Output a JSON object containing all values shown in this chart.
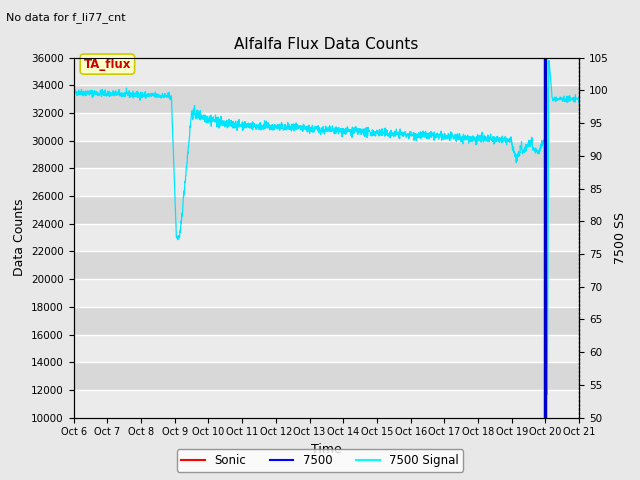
{
  "title": "Alfalfa Flux Data Counts",
  "top_left_text": "No data for f_li77_cnt",
  "xlabel": "Time",
  "ylabel_left": "Data Counts",
  "ylabel_right": "7500 SS",
  "ylim_left": [
    10000,
    36000
  ],
  "ylim_right": [
    50,
    105
  ],
  "yticks_left": [
    10000,
    12000,
    14000,
    16000,
    18000,
    20000,
    22000,
    24000,
    26000,
    28000,
    30000,
    32000,
    34000,
    36000
  ],
  "yticks_right": [
    50,
    55,
    60,
    65,
    70,
    75,
    80,
    85,
    90,
    95,
    100,
    105
  ],
  "xtick_labels": [
    "Oct 6",
    "Oct 7",
    "Oct 8",
    "Oct 9",
    "Oct 10",
    "Oct 11",
    "Oct 12",
    "Oct 13",
    "Oct 14",
    "Oct 15",
    "Oct 16",
    "Oct 17",
    "Oct 18",
    "Oct 19",
    "Oct 20",
    "Oct 21"
  ],
  "bg_color": "#e8e8e8",
  "plot_bg_color": "#e0e0e0",
  "grid_color": "#f5f5f5",
  "annotation_box": {
    "text": "TA_flux",
    "facecolor": "#ffffcc",
    "edgecolor": "#cccc00"
  },
  "cyan_line_color": "#00e5ff",
  "blue_line_color": "#0000cc",
  "num_points": 2000,
  "figsize": [
    6.4,
    4.8
  ],
  "dpi": 100
}
